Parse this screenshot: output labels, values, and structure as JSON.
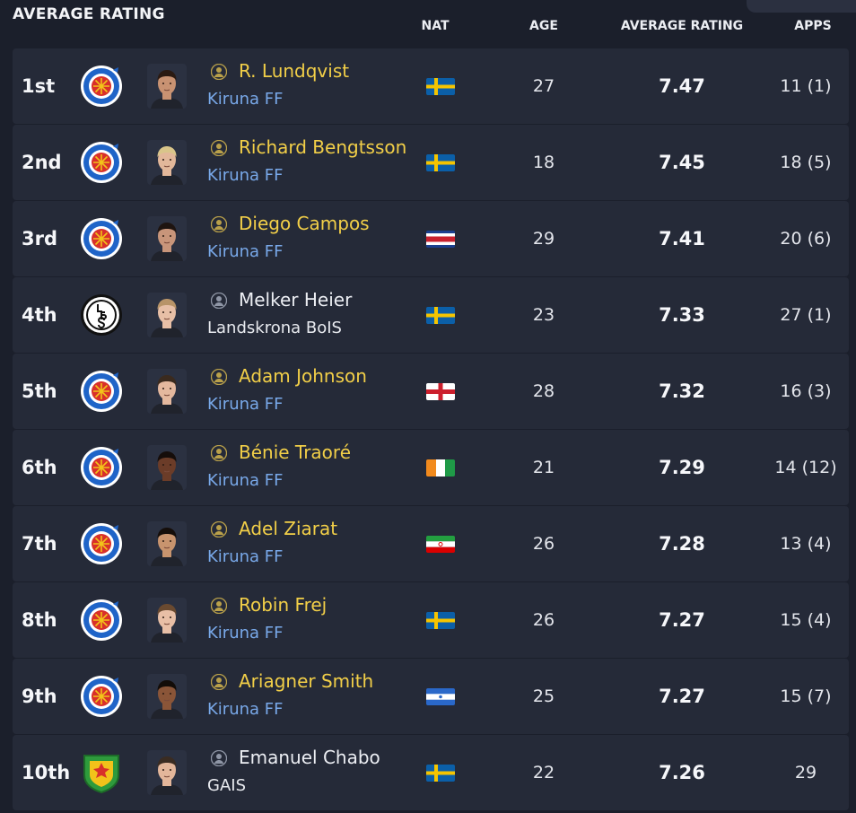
{
  "header": {
    "title": "AVERAGE RATING",
    "columns": {
      "nat": "NAT",
      "age": "AGE",
      "avg": "AVERAGE RATING",
      "apps": "APPS"
    }
  },
  "colors": {
    "background": "#1b1f2b",
    "row_background": "#252a38",
    "name_highlight": "#f2cf48",
    "club_link": "#79a9ea"
  },
  "rows": [
    {
      "rank": "1st",
      "name": "R. Lundqvist",
      "club": "Kiruna FF",
      "crest": "kiruna-crest",
      "nat": "Sweden",
      "flag": "se",
      "age": "27",
      "avg": "7.47",
      "apps": "11 (1)",
      "highlight": true,
      "skin": "#c89272",
      "hair": "#2a1a12"
    },
    {
      "rank": "2nd",
      "name": "Richard Bengtsson",
      "club": "Kiruna FF",
      "crest": "kiruna-crest",
      "nat": "Sweden",
      "flag": "se",
      "age": "18",
      "avg": "7.45",
      "apps": "18 (5)",
      "highlight": true,
      "skin": "#e2b79a",
      "hair": "#d9c58a"
    },
    {
      "rank": "3rd",
      "name": "Diego Campos",
      "club": "Kiruna FF",
      "crest": "kiruna-crest",
      "nat": "Costa Rica",
      "flag": "cr",
      "age": "29",
      "avg": "7.41",
      "apps": "20 (6)",
      "highlight": true,
      "skin": "#c8957a",
      "hair": "#1e1410"
    },
    {
      "rank": "4th",
      "name": "Melker Heier",
      "club": "Landskrona BoIS",
      "crest": "landskrona-crest",
      "nat": "Sweden",
      "flag": "se",
      "age": "23",
      "avg": "7.33",
      "apps": "27 (1)",
      "highlight": false,
      "skin": "#e7bfa6",
      "hair": "#b89468"
    },
    {
      "rank": "5th",
      "name": "Adam Johnson",
      "club": "Kiruna FF",
      "crest": "kiruna-crest",
      "nat": "England",
      "flag": "en",
      "age": "28",
      "avg": "7.32",
      "apps": "16 (3)",
      "highlight": true,
      "skin": "#e4b89e",
      "hair": "#3a2a1e"
    },
    {
      "rank": "6th",
      "name": "Bénie Traoré",
      "club": "Kiruna FF",
      "crest": "kiruna-crest",
      "nat": "Ivory Coast",
      "flag": "ci",
      "age": "21",
      "avg": "7.29",
      "apps": "14 (12)",
      "highlight": true,
      "skin": "#6b3c28",
      "hair": "#150d0a"
    },
    {
      "rank": "7th",
      "name": "Adel Ziarat",
      "club": "Kiruna FF",
      "crest": "kiruna-crest",
      "nat": "Iran",
      "flag": "ir",
      "age": "26",
      "avg": "7.28",
      "apps": "13 (4)",
      "highlight": true,
      "skin": "#c8946e",
      "hair": "#150e0a"
    },
    {
      "rank": "8th",
      "name": "Robin Frej",
      "club": "Kiruna FF",
      "crest": "kiruna-crest",
      "nat": "Sweden",
      "flag": "se",
      "age": "26",
      "avg": "7.27",
      "apps": "15 (4)",
      "highlight": true,
      "skin": "#e8bfa6",
      "hair": "#6a4a30"
    },
    {
      "rank": "9th",
      "name": "Ariagner Smith",
      "club": "Kiruna FF",
      "crest": "kiruna-crest",
      "nat": "Nicaragua",
      "flag": "ni",
      "age": "25",
      "avg": "7.27",
      "apps": "15 (7)",
      "highlight": true,
      "skin": "#8a5538",
      "hair": "#120c08"
    },
    {
      "rank": "10th",
      "name": "Emanuel Chabo",
      "club": "GAIS",
      "crest": "gais-crest",
      "nat": "Sweden",
      "flag": "se",
      "age": "22",
      "avg": "7.26",
      "apps": "29",
      "highlight": false,
      "skin": "#e3b69a",
      "hair": "#3a2c22"
    }
  ]
}
